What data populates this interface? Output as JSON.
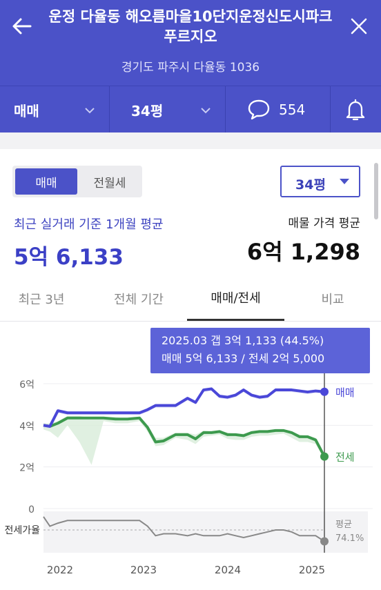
{
  "header": {
    "title": "운정 다율동 해오름마을10단지운정신도시파크푸르지오",
    "address": "경기도 파주시 다율동 1036"
  },
  "filters": {
    "deal_type": "매매",
    "size": "34평",
    "comment_count": "554"
  },
  "segment": {
    "active": "매매",
    "inactive": "전월세"
  },
  "size_select": "34평",
  "summary": {
    "recent_label": "최근 실거래 기준 1개월 평균",
    "recent_value": "5억 6,133",
    "ask_label": "매물 가격 평균",
    "ask_value": "6억 1,298"
  },
  "tabs": [
    {
      "label": "최근 3년"
    },
    {
      "label": "전체 기간"
    },
    {
      "label": "매매/전세"
    },
    {
      "label": "비교"
    }
  ],
  "tooltip": {
    "line1": "2025.03  갭 3억 1,133 (44.5%)",
    "line2": "매매 5억 6,133 / 전세 2억 5,000"
  },
  "colors": {
    "accent": "#4b52c8",
    "sale": "#4a47d8",
    "lease": "#3d9a4e",
    "ratio": "#888888"
  },
  "chart_data": {
    "type": "line",
    "x": [
      2021.7,
      2021.78,
      2021.88,
      2022.0,
      2022.15,
      2022.3,
      2022.45,
      2022.6,
      2022.75,
      2022.9,
      2023.0,
      2023.1,
      2023.2,
      2023.35,
      2023.5,
      2023.6,
      2023.7,
      2023.8,
      2023.9,
      2024.0,
      2024.1,
      2024.2,
      2024.3,
      2024.4,
      2024.5,
      2024.6,
      2024.7,
      2024.8,
      2024.9,
      2025.0,
      2025.1,
      2025.21
    ],
    "yticks": [
      "6억",
      "4억",
      "2억",
      "0"
    ],
    "xticks": [
      "2022",
      "2023",
      "2024",
      "2025"
    ],
    "ylim": [
      0,
      6
    ],
    "series": [
      {
        "name": "매매",
        "values": [
          4.0,
          3.95,
          4.7,
          4.6,
          4.6,
          4.6,
          4.6,
          4.6,
          4.6,
          4.6,
          4.75,
          4.95,
          4.95,
          4.95,
          5.3,
          5.1,
          5.7,
          5.75,
          5.4,
          5.35,
          5.45,
          5.7,
          5.45,
          5.35,
          5.4,
          5.7,
          5.7,
          5.7,
          5.65,
          5.6,
          5.65,
          5.61
        ]
      },
      {
        "name": "전세",
        "values": [
          4.0,
          3.95,
          4.1,
          4.35,
          4.35,
          4.35,
          4.35,
          4.3,
          4.3,
          4.35,
          3.9,
          3.2,
          3.25,
          3.55,
          3.55,
          3.35,
          3.65,
          3.65,
          3.7,
          3.55,
          3.55,
          3.5,
          3.65,
          3.7,
          3.7,
          3.75,
          3.75,
          3.65,
          3.45,
          3.45,
          3.3,
          2.5
        ]
      }
    ],
    "ratio": {
      "label": "전세가율",
      "avg_label": "평균",
      "avg_value": "74.1%",
      "values": [
        0.95,
        0.7,
        0.78,
        0.85,
        0.85,
        0.85,
        0.85,
        0.85,
        0.85,
        0.85,
        0.7,
        0.45,
        0.5,
        0.5,
        0.45,
        0.5,
        0.45,
        0.45,
        0.45,
        0.5,
        0.45,
        0.4,
        0.45,
        0.5,
        0.55,
        0.6,
        0.6,
        0.55,
        0.45,
        0.45,
        0.45,
        0.3
      ]
    }
  }
}
